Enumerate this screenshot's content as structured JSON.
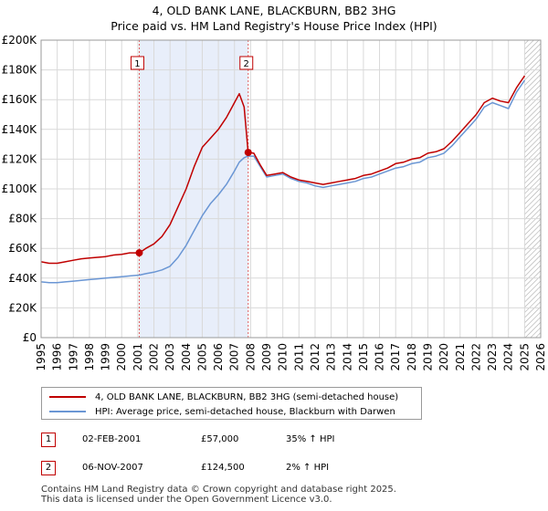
{
  "header": {
    "title": "4, OLD BANK LANE, BLACKBURN, BB2 3HG",
    "subtitle": "Price paid vs. HM Land Registry's House Price Index (HPI)"
  },
  "colors": {
    "property": "#c00000",
    "hpi": "#6a96d4",
    "shade": "#e8eefa",
    "grid": "#d9d9d9",
    "hatch": "#aaaaaa"
  },
  "chart_data": {
    "type": "line",
    "title": "4, OLD BANK LANE, BLACKBURN, BB2 3HG",
    "subtitle": "Price paid vs. HM Land Registry's House Price Index (HPI)",
    "xlim": [
      1995,
      2026
    ],
    "ylim": [
      0,
      200000
    ],
    "x_ticks": [
      1995,
      1996,
      1997,
      1998,
      1999,
      2000,
      2001,
      2002,
      2003,
      2004,
      2005,
      2006,
      2007,
      2008,
      2009,
      2010,
      2011,
      2012,
      2013,
      2014,
      2015,
      2016,
      2017,
      2018,
      2019,
      2020,
      2021,
      2022,
      2023,
      2024,
      2025,
      2026
    ],
    "y_ticks": [
      {
        "value": 0,
        "label": "£0"
      },
      {
        "value": 20000,
        "label": "£20K"
      },
      {
        "value": 40000,
        "label": "£40K"
      },
      {
        "value": 60000,
        "label": "£60K"
      },
      {
        "value": 80000,
        "label": "£80K"
      },
      {
        "value": 100000,
        "label": "£100K"
      },
      {
        "value": 120000,
        "label": "£120K"
      },
      {
        "value": 140000,
        "label": "£140K"
      },
      {
        "value": 160000,
        "label": "£160K"
      },
      {
        "value": 180000,
        "label": "£180K"
      },
      {
        "value": 200000,
        "label": "£200K"
      }
    ],
    "shaded_region": [
      2001.09,
      2007.85
    ],
    "future_hatch_from": 2025.0,
    "grid": true,
    "series": [
      {
        "name": "4, OLD BANK LANE, BLACKBURN, BB2 3HG (semi-detached house)",
        "color": "#c00000",
        "x": [
          1995.0,
          1995.5,
          1996.0,
          1996.5,
          1997.0,
          1997.5,
          1998.0,
          1998.5,
          1999.0,
          1999.5,
          2000.0,
          2000.5,
          2001.09,
          2001.5,
          2002.0,
          2002.5,
          2003.0,
          2003.5,
          2004.0,
          2004.5,
          2005.0,
          2005.5,
          2006.0,
          2006.5,
          2007.0,
          2007.3,
          2007.6,
          2007.85,
          2008.2,
          2008.6,
          2009.0,
          2009.5,
          2010.0,
          2010.5,
          2011.0,
          2011.5,
          2012.0,
          2012.5,
          2013.0,
          2013.5,
          2014.0,
          2014.5,
          2015.0,
          2015.5,
          2016.0,
          2016.5,
          2017.0,
          2017.5,
          2018.0,
          2018.5,
          2019.0,
          2019.5,
          2020.0,
          2020.5,
          2021.0,
          2021.5,
          2022.0,
          2022.5,
          2023.0,
          2023.5,
          2024.0,
          2024.5,
          2025.0
        ],
        "y": [
          51000,
          50000,
          50000,
          51000,
          52000,
          53000,
          53500,
          54000,
          54500,
          55500,
          56000,
          57000,
          57000,
          60000,
          63000,
          68000,
          76000,
          88000,
          100000,
          115000,
          128000,
          134000,
          140000,
          148000,
          158000,
          164000,
          155000,
          124500,
          124000,
          116000,
          109000,
          110000,
          111000,
          108000,
          106000,
          105000,
          104000,
          103000,
          104000,
          105000,
          106000,
          107000,
          109000,
          110000,
          112000,
          114000,
          117000,
          118000,
          120000,
          121000,
          124000,
          125000,
          127000,
          132000,
          138000,
          144000,
          150000,
          158000,
          161000,
          159000,
          158000,
          168000,
          176000
        ]
      },
      {
        "name": "HPI: Average price, semi-detached house, Blackburn with Darwen",
        "color": "#6a96d4",
        "x": [
          1995.0,
          1995.5,
          1996.0,
          1996.5,
          1997.0,
          1997.5,
          1998.0,
          1998.5,
          1999.0,
          1999.5,
          2000.0,
          2000.5,
          2001.09,
          2001.5,
          2002.0,
          2002.5,
          2003.0,
          2003.5,
          2004.0,
          2004.5,
          2005.0,
          2005.5,
          2006.0,
          2006.5,
          2007.0,
          2007.3,
          2007.6,
          2007.85,
          2008.2,
          2008.6,
          2009.0,
          2009.5,
          2010.0,
          2010.5,
          2011.0,
          2011.5,
          2012.0,
          2012.5,
          2013.0,
          2013.5,
          2014.0,
          2014.5,
          2015.0,
          2015.5,
          2016.0,
          2016.5,
          2017.0,
          2017.5,
          2018.0,
          2018.5,
          2019.0,
          2019.5,
          2020.0,
          2020.5,
          2021.0,
          2021.5,
          2022.0,
          2022.5,
          2023.0,
          2023.5,
          2024.0,
          2024.5,
          2025.0
        ],
        "y": [
          37500,
          37000,
          37000,
          37500,
          38000,
          38500,
          39000,
          39500,
          40000,
          40500,
          41000,
          41500,
          42000,
          43000,
          44000,
          45500,
          48000,
          54000,
          62000,
          72000,
          82000,
          90000,
          96000,
          103000,
          112000,
          118000,
          121000,
          122000,
          122000,
          115000,
          108000,
          109000,
          110000,
          107000,
          105000,
          104000,
          102000,
          101000,
          102000,
          103000,
          104000,
          105000,
          107000,
          108000,
          110000,
          112000,
          114000,
          115000,
          117000,
          118000,
          121000,
          122000,
          124000,
          129000,
          135000,
          141000,
          147000,
          155000,
          158000,
          156000,
          154000,
          165000,
          173000
        ]
      }
    ],
    "sales": [
      {
        "id": "1",
        "x": 2001.09,
        "y": 57000
      },
      {
        "id": "2",
        "x": 2007.85,
        "y": 124500
      }
    ]
  },
  "legend": {
    "items": [
      {
        "label": "4, OLD BANK LANE, BLACKBURN, BB2 3HG (semi-detached house)"
      },
      {
        "label": "HPI: Average price, semi-detached house, Blackburn with Darwen"
      }
    ]
  },
  "sales_table": [
    {
      "id": "1",
      "date": "02-FEB-2001",
      "price": "£57,000",
      "hpi": "35% ↑ HPI"
    },
    {
      "id": "2",
      "date": "06-NOV-2007",
      "price": "£124,500",
      "hpi": "2% ↑ HPI"
    }
  ],
  "footer": {
    "line1": "Contains HM Land Registry data © Crown copyright and database right 2025.",
    "line2": "This data is licensed under the Open Government Licence v3.0."
  }
}
